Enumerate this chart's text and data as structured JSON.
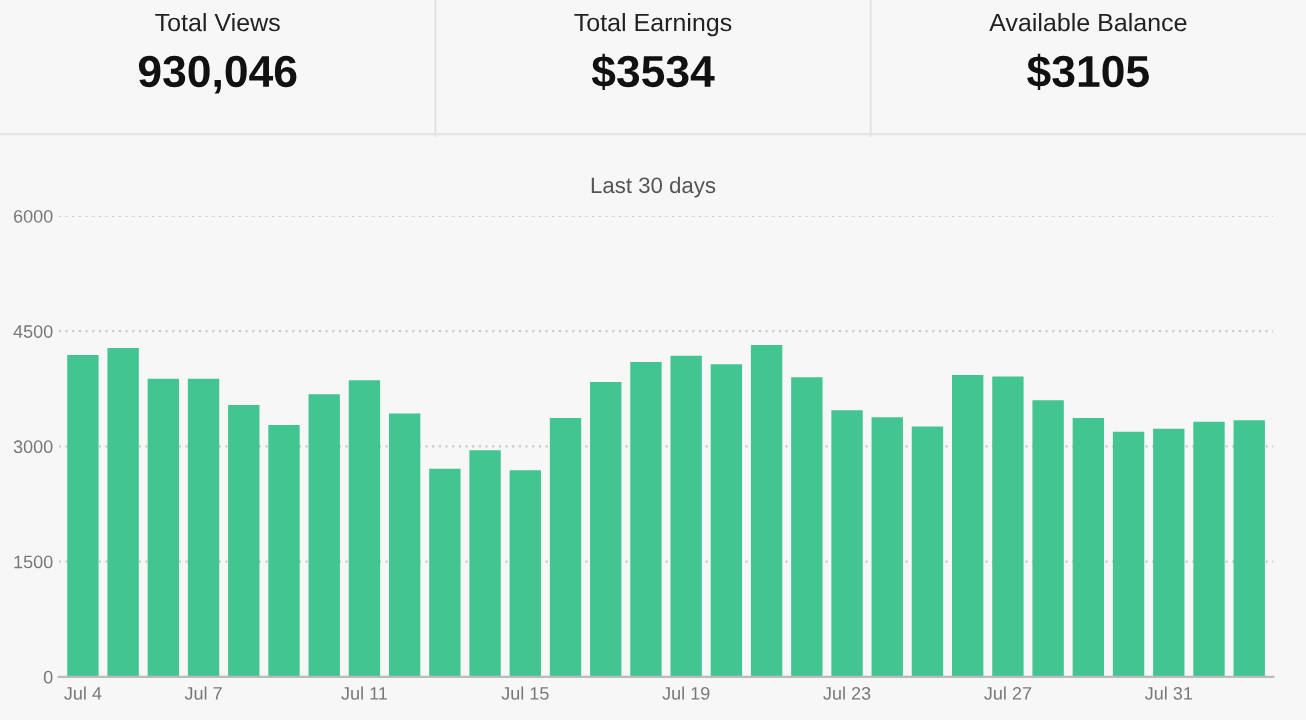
{
  "chart_data": [
    {
      "type": "other",
      "annotations": [
        "Total Views",
        "930,046",
        "Total Earnings",
        "$3534",
        "Available Balance",
        "$3105"
      ]
    },
    {
      "type": "bar",
      "title": "Last 30 days",
      "categories": [
        "Jul 4",
        null,
        null,
        "Jul 7",
        null,
        null,
        null,
        "Jul 11",
        null,
        null,
        null,
        "Jul 15",
        null,
        null,
        null,
        "Jul 19",
        null,
        null,
        null,
        "Jul 23",
        null,
        null,
        null,
        "Jul 27",
        null,
        null,
        null,
        "Jul 31",
        null,
        null
      ],
      "values": [
        4190,
        4280,
        3880,
        3880,
        3540,
        3280,
        3680,
        3860,
        3430,
        2710,
        2950,
        2690,
        3370,
        3840,
        4100,
        4180,
        4070,
        4320,
        3900,
        3470,
        3380,
        3260,
        3930,
        3910,
        3600,
        3370,
        3190,
        3230,
        3320,
        3340
      ],
      "color": "#42c590",
      "ylim": [
        0,
        6000
      ],
      "yticks": [
        0,
        1500,
        3000,
        4500,
        6000
      ],
      "grid": "y"
    }
  ]
}
